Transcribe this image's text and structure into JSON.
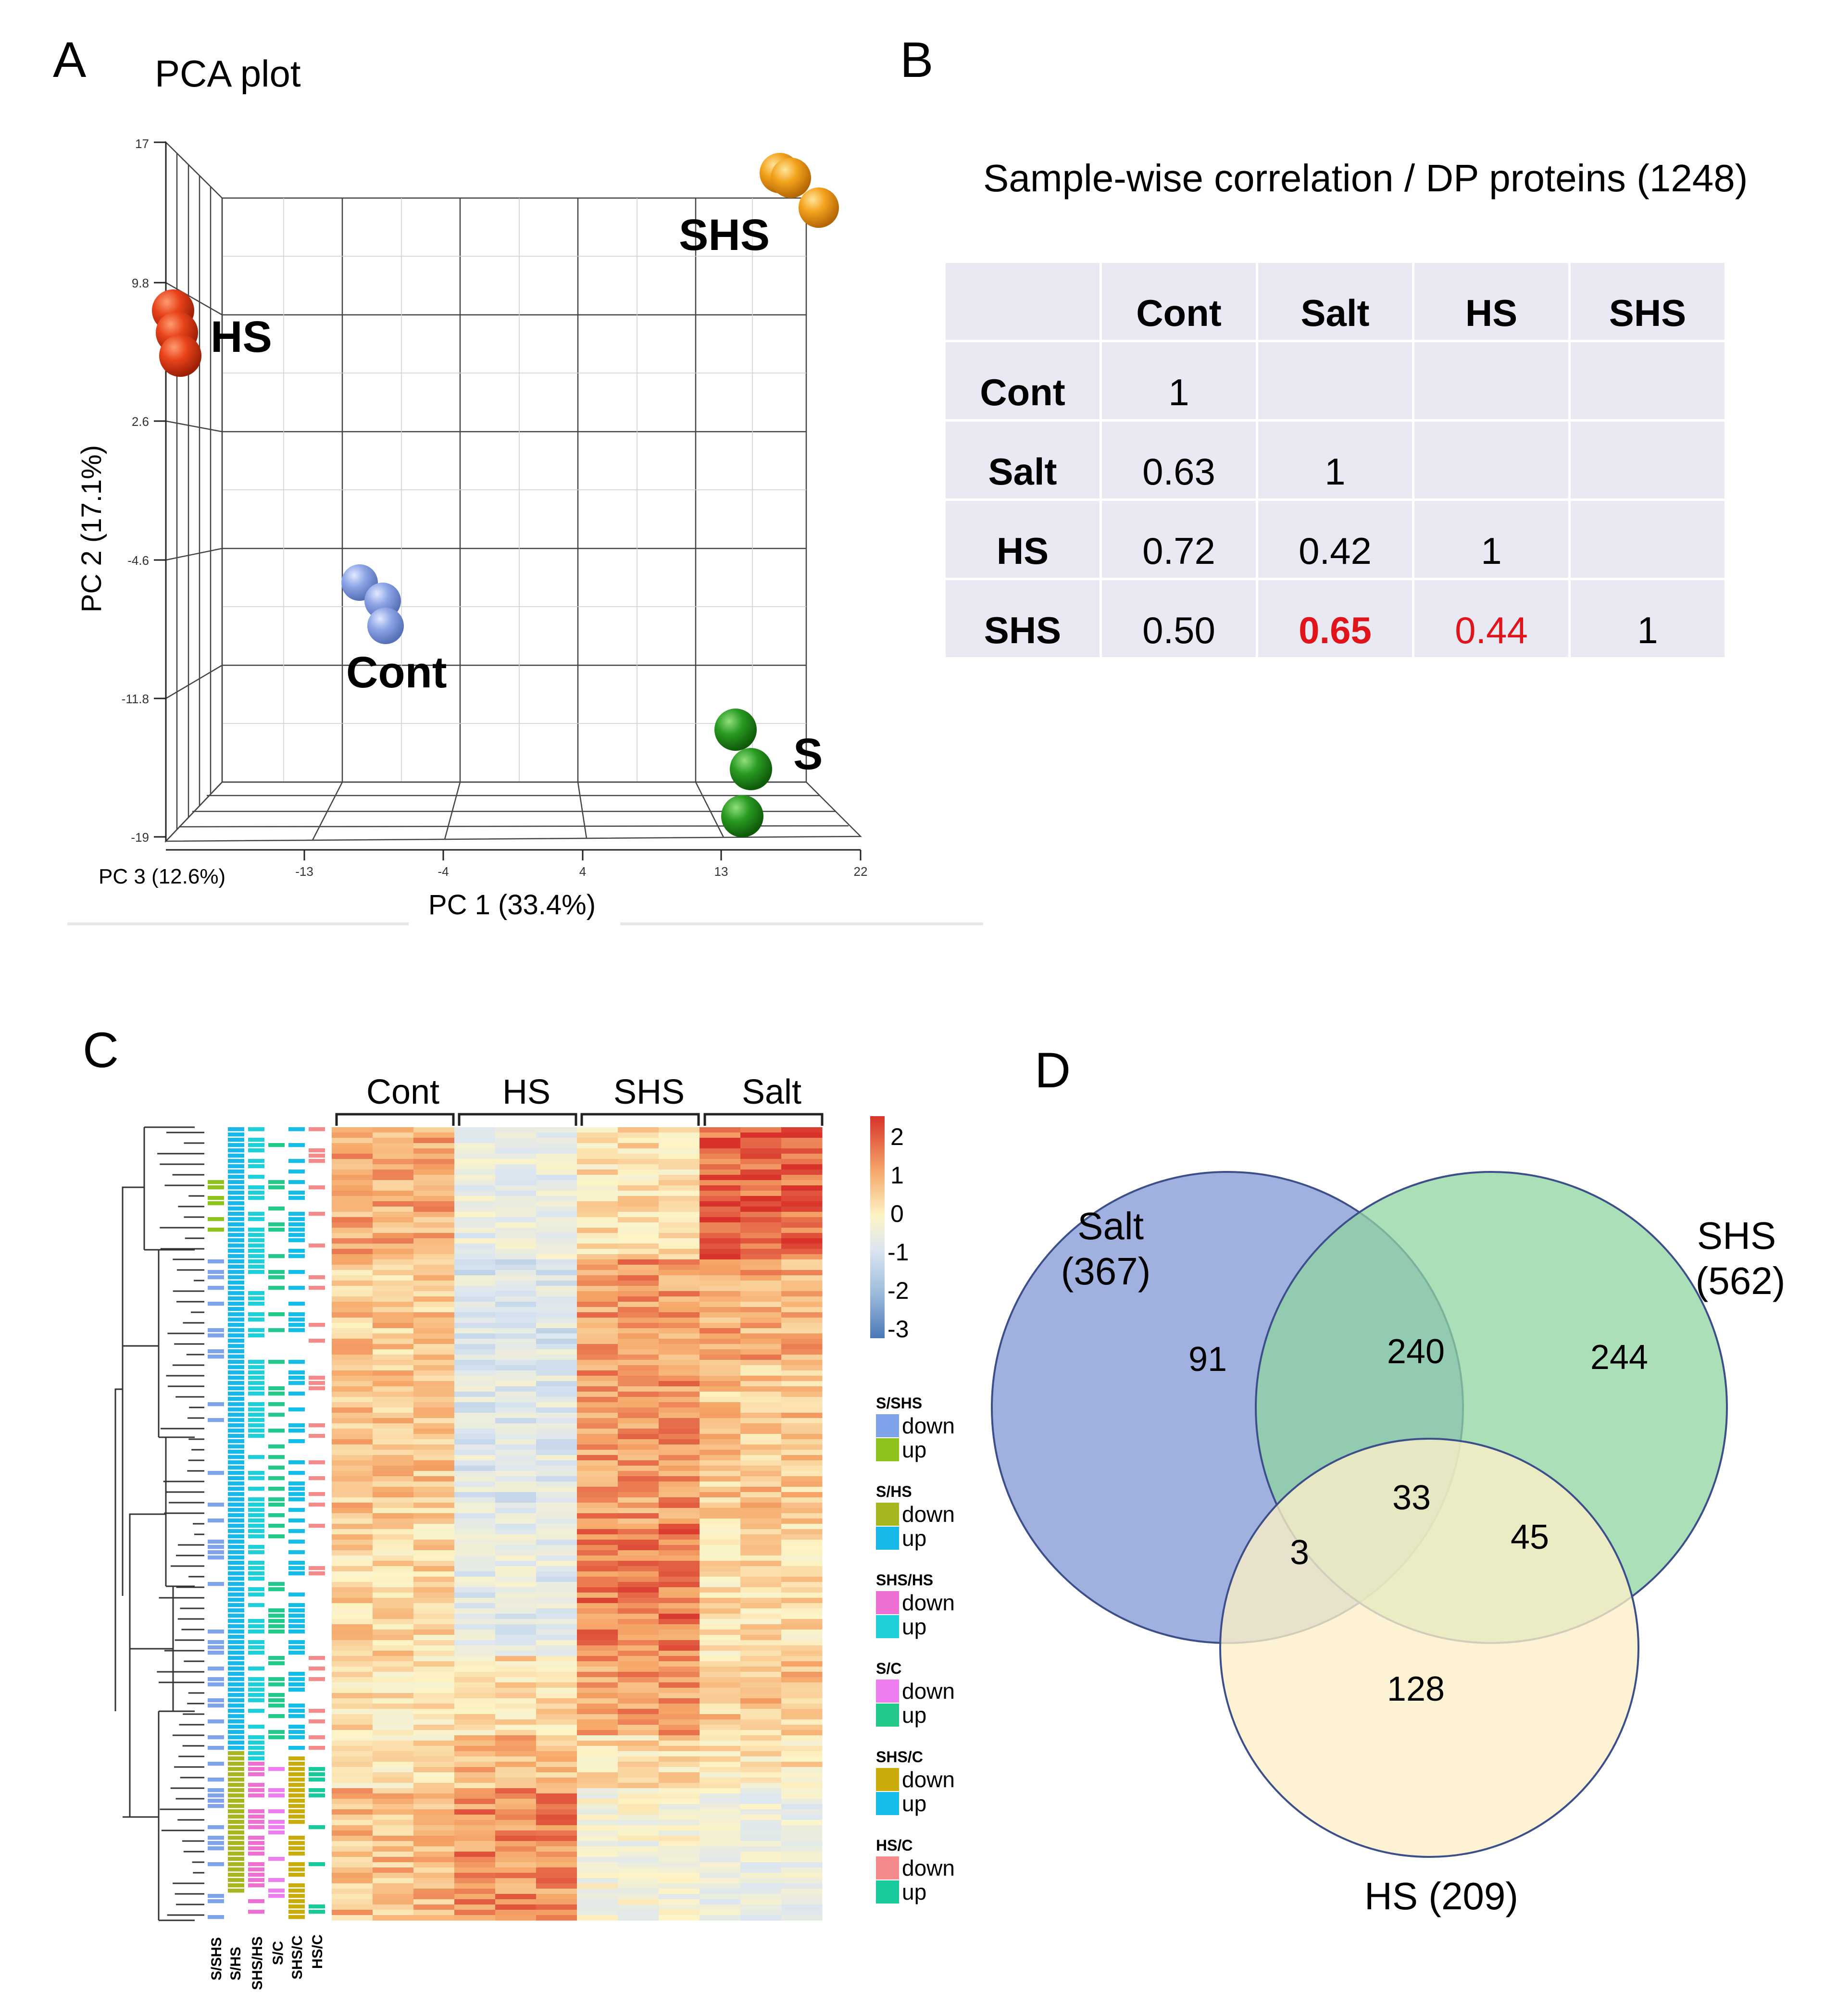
{
  "panels": {
    "A": {
      "letter": "A",
      "title": "PCA plot",
      "pc1_label": "PC 1 (33.4%)",
      "pc2_label": "PC 2 (17.1%)",
      "pc3_label": "PC 3 (12.6%)",
      "pc1_ticks": [
        "-13",
        "-4",
        "4",
        "13",
        "22"
      ],
      "pc2_ticks": [
        "17",
        "9.8",
        "2.6",
        "-4.6",
        "-11.8",
        "-19"
      ],
      "groups": [
        {
          "label": "SHS",
          "color": "#f3a21c"
        },
        {
          "label": "HS",
          "color": "#e8431b"
        },
        {
          "label": "Cont",
          "color": "#8ea5e6"
        },
        {
          "label": "S",
          "color": "#2a9a22"
        }
      ]
    },
    "B": {
      "letter": "B",
      "title": "Sample-wise correlation / DP proteins (1248)",
      "columns": [
        "",
        "Cont",
        "Salt",
        "HS",
        "SHS"
      ],
      "rows": [
        {
          "label": "Cont",
          "values": [
            "1",
            "",
            "",
            ""
          ]
        },
        {
          "label": "Salt",
          "values": [
            "0.63",
            "1",
            "",
            ""
          ]
        },
        {
          "label": "HS",
          "values": [
            "0.72",
            "0.42",
            "1",
            ""
          ]
        },
        {
          "label": "SHS",
          "values": [
            "0.50",
            "0.65",
            "0.44",
            "1"
          ]
        }
      ],
      "highlight_color": "#e0141b"
    },
    "C": {
      "letter": "C",
      "column_groups": [
        "Cont",
        "HS",
        "SHS",
        "Salt"
      ],
      "colorbar_ticks": [
        "2",
        "1",
        "0",
        "-1",
        "-2",
        "-3"
      ],
      "annotation_columns": [
        "S/SHS",
        "S/HS",
        "SHS/HS",
        "S/C",
        "SHS/C",
        "HS/C"
      ],
      "legend": [
        {
          "title": "S/SHS",
          "down_label": "down",
          "up_label": "up",
          "down_color": "#7fa3ea",
          "up_color": "#8cc21a"
        },
        {
          "title": "S/HS",
          "down_label": "down",
          "up_label": "up",
          "down_color": "#a7b51e",
          "up_color": "#18b7ea"
        },
        {
          "title": "SHS/HS",
          "down_label": "down",
          "up_label": "up",
          "down_color": "#ee6fd2",
          "up_color": "#1ccfd8"
        },
        {
          "title": "S/C",
          "down_label": "down",
          "up_label": "up",
          "down_color": "#ee7ef0",
          "up_color": "#22c98b"
        },
        {
          "title": "SHS/C",
          "down_label": "down",
          "up_label": "up",
          "down_color": "#c9ab0a",
          "up_color": "#14bde8"
        },
        {
          "title": "HS/C",
          "down_label": "down",
          "up_label": "up",
          "down_color": "#f48a8a",
          "up_color": "#18c99c"
        }
      ]
    },
    "D": {
      "letter": "D",
      "sets": [
        {
          "name": "Salt",
          "count": "(367)",
          "color": "#8fa3d9"
        },
        {
          "name": "SHS",
          "count": "(562)",
          "color": "#8fd4a0"
        },
        {
          "name": "HS (209)",
          "count": "",
          "color": "#fdf0c8"
        }
      ],
      "regions": {
        "salt_only": "91",
        "salt_shs": "240",
        "shs_only": "244",
        "all_three": "33",
        "salt_hs": "3",
        "shs_hs": "45",
        "hs_only": "128"
      }
    }
  }
}
